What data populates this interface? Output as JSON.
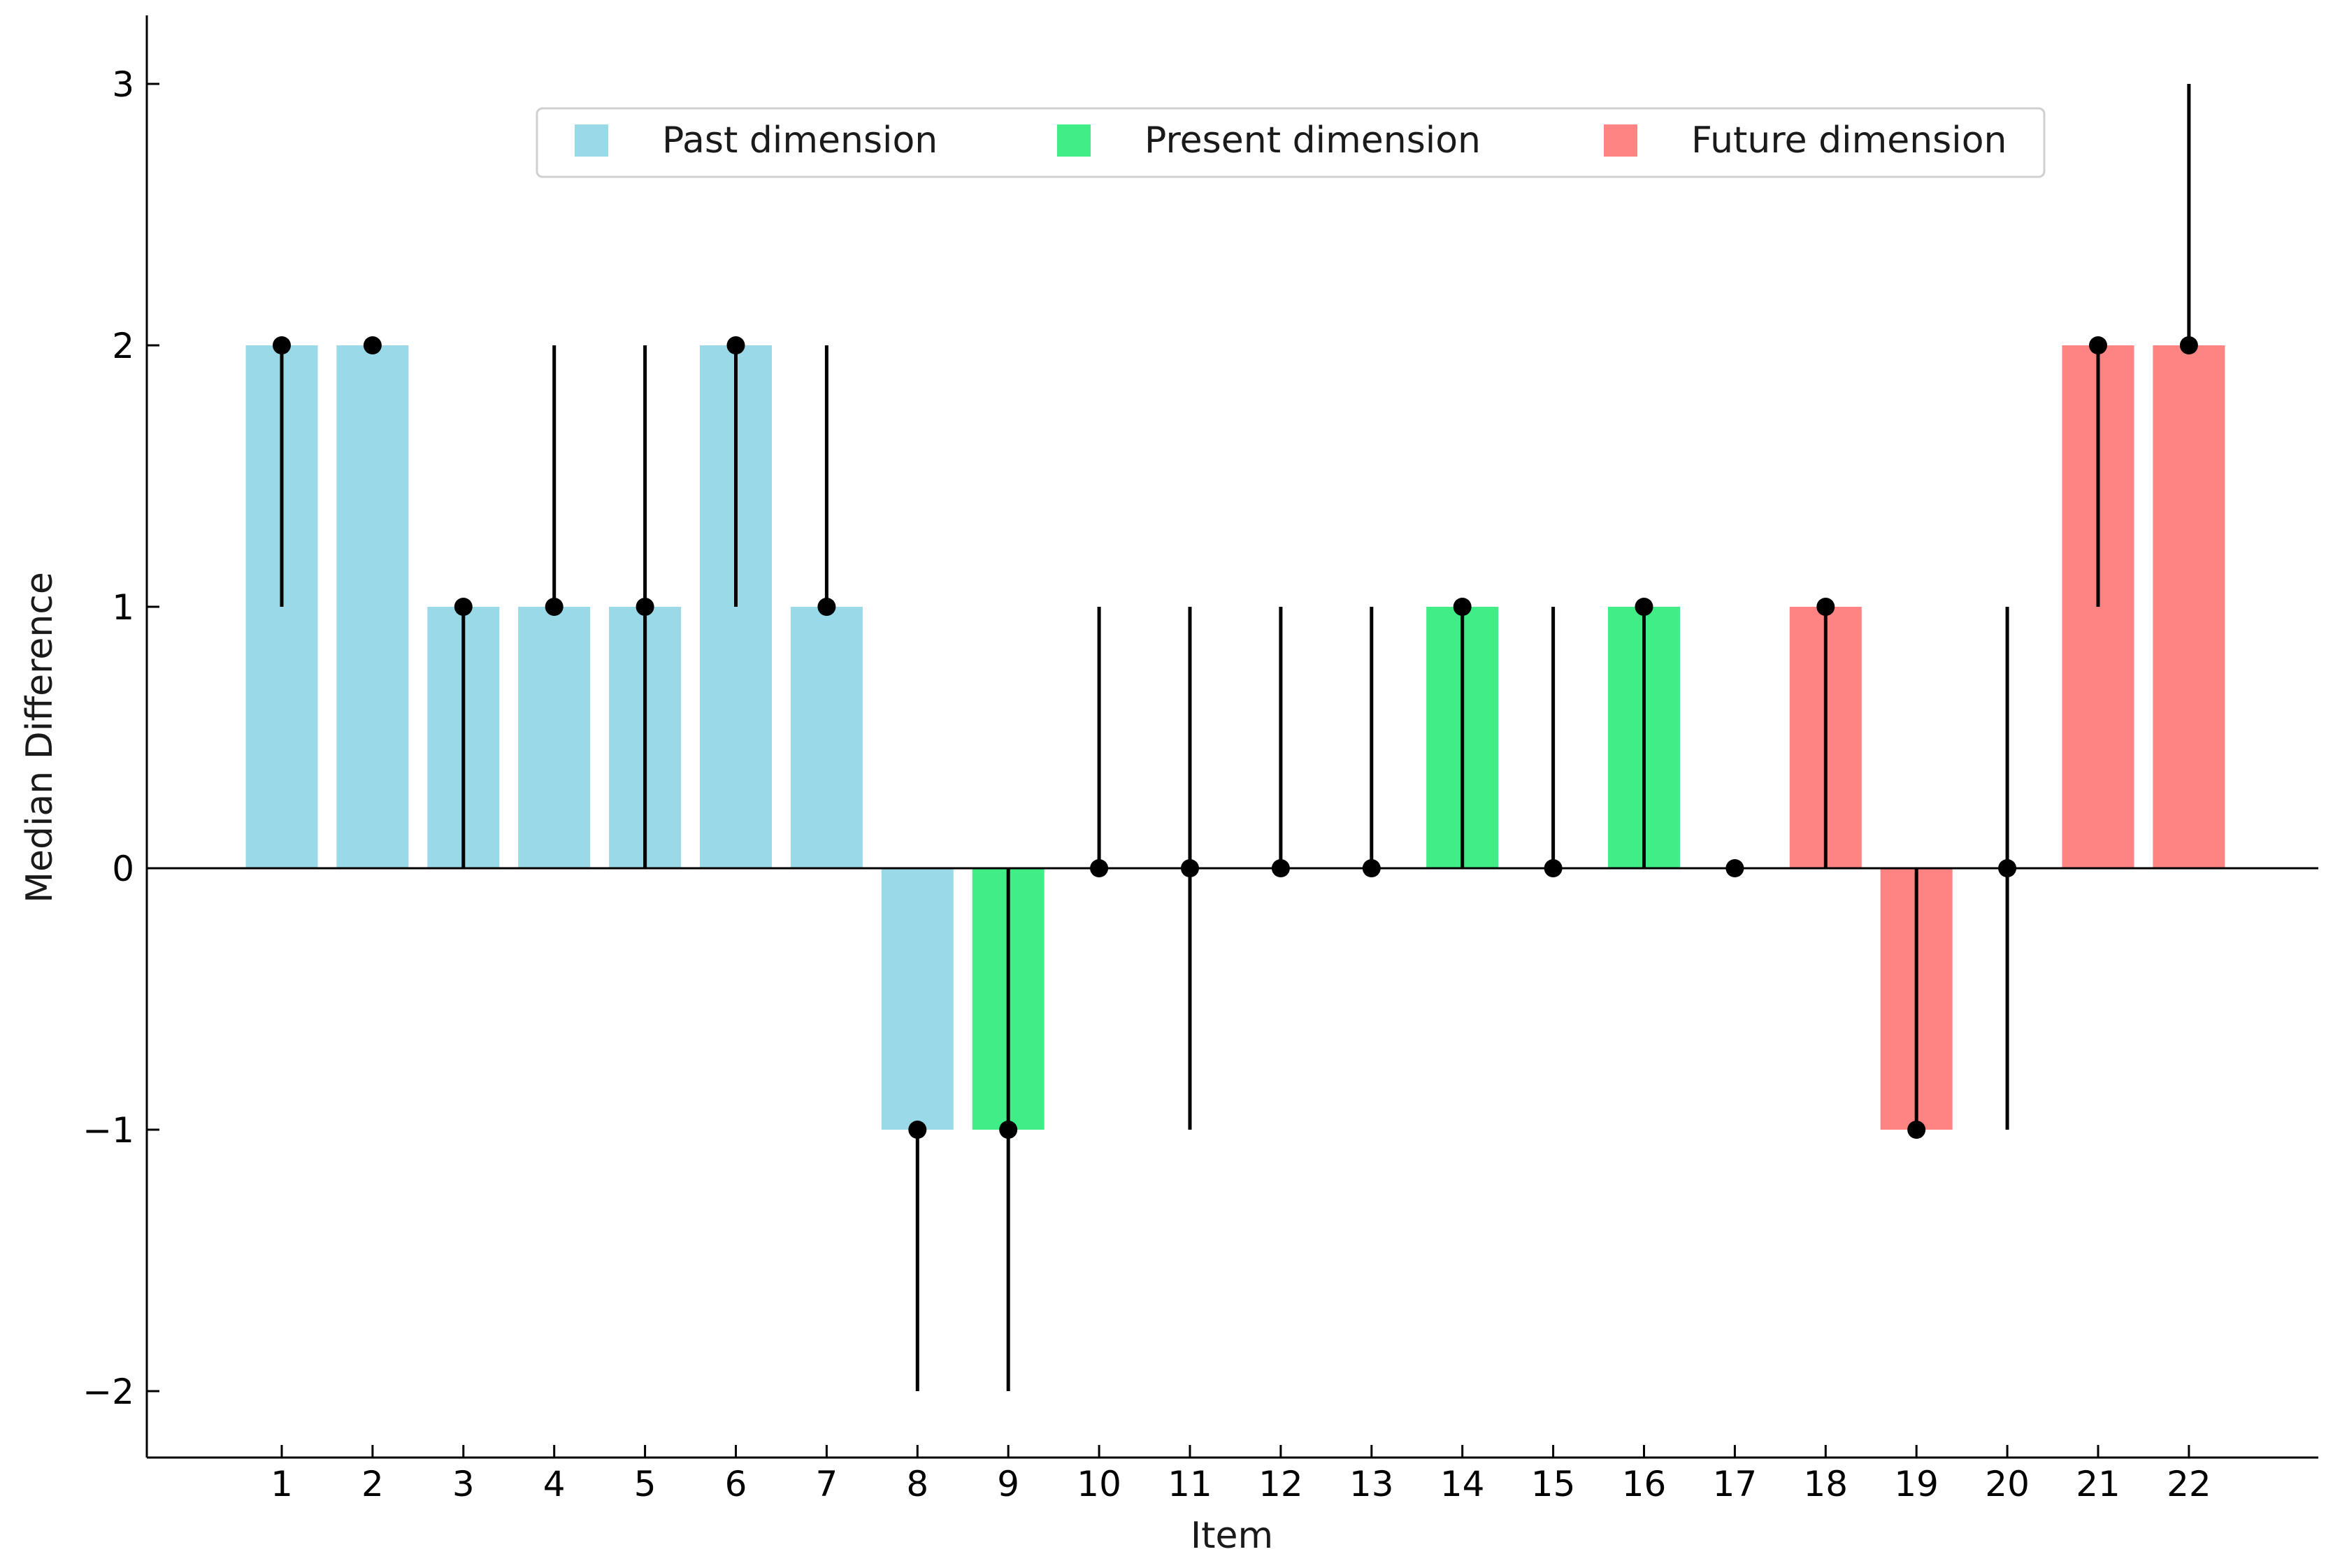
{
  "chart_data": {
    "type": "bar",
    "title": "",
    "xlabel": "Item",
    "ylabel": "Median Difference",
    "ylim": [
      -2.25,
      3.25
    ],
    "yticks": [
      -2,
      -1,
      0,
      1,
      2,
      3
    ],
    "ytick_labels": [
      "−2",
      "−1",
      "0",
      "1",
      "2",
      "3"
    ],
    "categories": [
      "1",
      "2",
      "3",
      "4",
      "5",
      "6",
      "7",
      "8",
      "9",
      "10",
      "11",
      "12",
      "13",
      "14",
      "15",
      "16",
      "17",
      "18",
      "19",
      "20",
      "21",
      "22"
    ],
    "values": [
      2,
      2,
      1,
      1,
      1,
      2,
      1,
      -1,
      -1,
      0,
      0,
      0,
      0,
      1,
      0,
      1,
      0,
      1,
      -1,
      0,
      2,
      2
    ],
    "dimension": [
      "past",
      "past",
      "past",
      "past",
      "past",
      "past",
      "past",
      "past",
      "present",
      "present",
      "present",
      "present",
      "present",
      "present",
      "present",
      "present",
      "present",
      "future",
      "future",
      "future",
      "future",
      "future"
    ],
    "range_low": [
      1,
      2,
      0,
      1,
      0,
      1,
      1,
      -2,
      -2,
      0,
      -1,
      0,
      0,
      0,
      0,
      0,
      0,
      0,
      -1,
      -1,
      1,
      2
    ],
    "range_high": [
      2,
      2,
      1,
      2,
      2,
      2,
      2,
      -1,
      0,
      1,
      1,
      1,
      1,
      1,
      1,
      1,
      0,
      1,
      0,
      1,
      2,
      3
    ],
    "legend": {
      "position": "top-center",
      "entries": [
        {
          "key": "past",
          "label": "Past dimension",
          "color": "#9ad9e7"
        },
        {
          "key": "present",
          "label": "Present dimension",
          "color": "#40ed86"
        },
        {
          "key": "future",
          "label": "Future dimension",
          "color": "#fe8383"
        }
      ]
    },
    "grid": false
  }
}
